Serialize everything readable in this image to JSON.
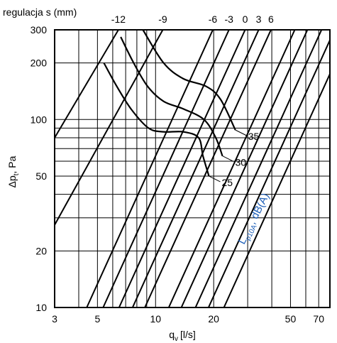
{
  "chart_data": {
    "type": "line",
    "x_scale": "log",
    "y_scale": "log",
    "xlim": [
      3,
      80
    ],
    "ylim": [
      10,
      300
    ],
    "grid": true,
    "title": "regulacja s (mm)",
    "xlabel": {
      "q": "q",
      "sub": "v",
      "unit": "[l/s]"
    },
    "ylabel": {
      "delta": "Δp",
      "sub": "t",
      "unit": ", Pa"
    },
    "x_ticks": [
      {
        "value": 3,
        "label": "3"
      },
      {
        "value": 5,
        "label": "5"
      },
      {
        "value": 10,
        "label": "10"
      },
      {
        "value": 20,
        "label": "20"
      },
      {
        "value": 50,
        "label": "50"
      },
      {
        "value": 70,
        "label": "70"
      }
    ],
    "y_ticks": [
      {
        "value": 10,
        "label": "10"
      },
      {
        "value": 20,
        "label": "20"
      },
      {
        "value": 50,
        "label": "50"
      },
      {
        "value": 100,
        "label": "100"
      },
      {
        "value": 200,
        "label": "200"
      },
      {
        "value": 300,
        "label": "300"
      }
    ],
    "x_grid": [
      3,
      4,
      5,
      6,
      7,
      8,
      9,
      10,
      20,
      30,
      40,
      50,
      60,
      70,
      80
    ],
    "y_grid": [
      10,
      20,
      30,
      40,
      50,
      60,
      70,
      80,
      90,
      100,
      200,
      300
    ],
    "regulation_lines": [
      {
        "label": "-12",
        "points": [
          [
            3,
            80
          ],
          [
            6.42,
            300
          ]
        ]
      },
      {
        "label": "-9",
        "points": [
          [
            3,
            27.5
          ],
          [
            10.9,
            300
          ]
        ]
      },
      {
        "label": "-6",
        "points": [
          [
            4.4,
            10
          ],
          [
            19.8,
            300
          ]
        ]
      },
      {
        "label": "-3",
        "points": [
          [
            5.35,
            10
          ],
          [
            24,
            300
          ]
        ]
      },
      {
        "label": "0",
        "points": [
          [
            6.47,
            10
          ],
          [
            29.1,
            300
          ]
        ]
      },
      {
        "label": "3",
        "points": [
          [
            7.6,
            10
          ],
          [
            34.2,
            300
          ]
        ]
      },
      {
        "label": "6",
        "points": [
          [
            8.8,
            10
          ],
          [
            39.6,
            300
          ]
        ]
      },
      {
        "label": "",
        "points": [
          [
            11.7,
            10
          ],
          [
            52.6,
            300
          ]
        ]
      },
      {
        "label": "",
        "points": [
          [
            13.6,
            10
          ],
          [
            61.2,
            300
          ]
        ]
      },
      {
        "label": "",
        "points": [
          [
            16.1,
            10
          ],
          [
            72.4,
            300
          ]
        ]
      },
      {
        "label": "",
        "points": [
          [
            18.8,
            10
          ],
          [
            84.6,
            300
          ]
        ]
      },
      {
        "label": "",
        "points": [
          [
            22.6,
            10
          ],
          [
            101.6,
            300
          ]
        ]
      }
    ],
    "noise_curves": [
      {
        "label": "25",
        "points": [
          [
            5.4,
            200
          ],
          [
            6.3,
            150
          ],
          [
            7.5,
            113
          ],
          [
            9.2,
            90
          ],
          [
            11,
            86
          ],
          [
            13.9,
            86
          ],
          [
            16.7,
            80
          ],
          [
            17.6,
            64
          ],
          [
            18.9,
            50
          ]
        ]
      },
      {
        "label": "30",
        "points": [
          [
            6.6,
            275
          ],
          [
            7.7,
            200
          ],
          [
            9.1,
            150
          ],
          [
            11,
            125
          ],
          [
            13.9,
            114
          ],
          [
            17.8,
            100
          ],
          [
            20.5,
            80
          ],
          [
            22.2,
            64
          ]
        ]
      },
      {
        "label": "35",
        "points": [
          [
            8.6,
            300
          ],
          [
            11,
            200
          ],
          [
            13.9,
            165
          ],
          [
            18.3,
            150
          ],
          [
            21.7,
            128
          ],
          [
            25.9,
            88
          ]
        ]
      }
    ],
    "noise_label": {
      "L": "L",
      "sub": "p10A",
      "rest": ", dB(A)"
    }
  }
}
